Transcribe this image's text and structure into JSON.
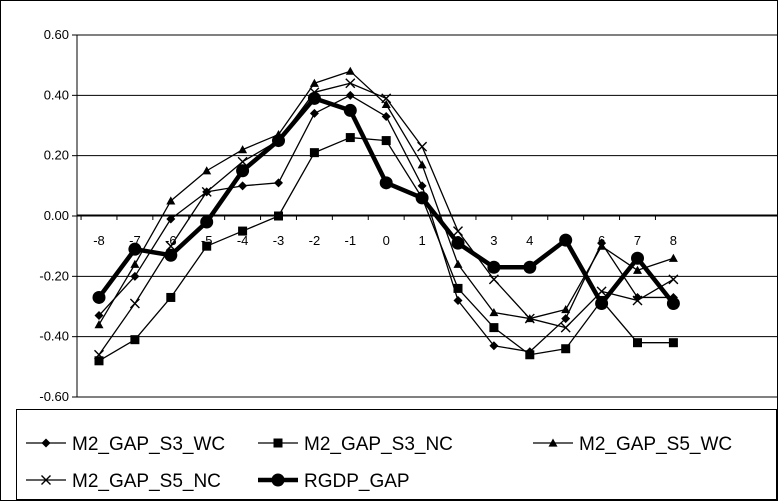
{
  "chart_data": {
    "type": "line",
    "x": [
      -8,
      -7,
      -6,
      -5,
      -4,
      -3,
      -2,
      -1,
      0,
      1,
      2,
      3,
      4,
      5,
      6,
      7,
      8
    ],
    "x_tick_labels": [
      "-8",
      "-7",
      "-6",
      "-5",
      "-4",
      "-3",
      "-2",
      "-1",
      "0",
      "1",
      "2",
      "3",
      "4",
      "5",
      "6",
      "7",
      "8"
    ],
    "y_tick_labels": [
      "0.60",
      "0.40",
      "0.20",
      "0.00",
      "-0.20",
      "-0.40",
      "-0.60"
    ],
    "ylim": [
      -0.6,
      0.6
    ],
    "grid": "horizontal major gridlines",
    "legend_position": "bottom",
    "series": [
      {
        "name": "M2_GAP_S3_WC",
        "marker": "diamond",
        "color": "#000000",
        "values": [
          -0.33,
          -0.2,
          -0.01,
          0.08,
          0.1,
          0.11,
          0.34,
          0.4,
          0.33,
          0.1,
          -0.28,
          -0.43,
          -0.45,
          -0.34,
          -0.09,
          -0.27,
          -0.27
        ]
      },
      {
        "name": "M2_GAP_S3_NC",
        "marker": "square",
        "color": "#000000",
        "values": [
          -0.48,
          -0.41,
          -0.27,
          -0.1,
          -0.05,
          0.0,
          0.21,
          0.26,
          0.25,
          0.06,
          -0.24,
          -0.37,
          -0.46,
          -0.44,
          -0.28,
          -0.42,
          -0.42
        ]
      },
      {
        "name": "M2_GAP_S5_WC",
        "marker": "triangle",
        "color": "#000000",
        "values": [
          -0.36,
          -0.16,
          0.05,
          0.15,
          0.22,
          0.27,
          0.44,
          0.48,
          0.37,
          0.17,
          -0.16,
          -0.32,
          -0.34,
          -0.31,
          -0.1,
          -0.18,
          -0.14
        ]
      },
      {
        "name": "M2_GAP_S5_NC",
        "marker": "x",
        "color": "#000000",
        "values": [
          -0.46,
          -0.29,
          -0.1,
          0.08,
          0.18,
          0.25,
          0.41,
          0.44,
          0.39,
          0.23,
          -0.05,
          -0.21,
          -0.34,
          -0.37,
          -0.25,
          -0.28,
          -0.21
        ]
      },
      {
        "name": "RGDP_GAP",
        "marker": "circle",
        "color": "#000000",
        "bold": true,
        "values": [
          -0.27,
          -0.11,
          -0.13,
          -0.02,
          0.15,
          0.25,
          0.39,
          0.35,
          0.11,
          0.06,
          -0.09,
          -0.17,
          -0.17,
          -0.08,
          -0.29,
          -0.14,
          -0.29
        ]
      }
    ]
  }
}
